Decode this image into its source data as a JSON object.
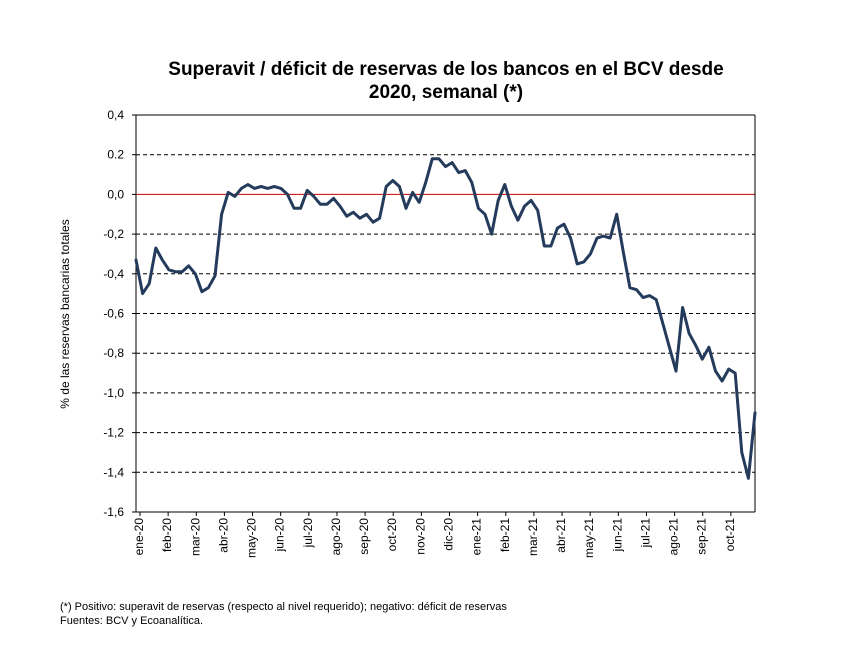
{
  "chart_data": {
    "type": "line",
    "title_lines": [
      "Superavit / déficit de reservas de los bancos en el BCV desde",
      "2020, semanal (*)"
    ],
    "ylabel": "% de las reservas bancarias totales",
    "ylim": [
      -1.6,
      0.4
    ],
    "yticks": [
      {
        "value": 0.4,
        "label": "0,4"
      },
      {
        "value": 0.2,
        "label": "0.2"
      },
      {
        "value": 0.0,
        "label": "0,0"
      },
      {
        "value": -0.2,
        "label": "-0,2"
      },
      {
        "value": -0.4,
        "label": "-0,4"
      },
      {
        "value": -0.6,
        "label": "-0,6"
      },
      {
        "value": -0.8,
        "label": "-0,8"
      },
      {
        "value": -1.0,
        "label": "-1,0"
      },
      {
        "value": -1.2,
        "label": "-1,2"
      },
      {
        "value": -1.4,
        "label": "-1,4"
      },
      {
        "value": -1.6,
        "label": "-1,6"
      }
    ],
    "xtick_labels": [
      "ene-20",
      "feb-20",
      "mar-20",
      "abr-20",
      "may-20",
      "jun-20",
      "jul-20",
      "ago-20",
      "sep-20",
      "oct-20",
      "nov-20",
      "dic-20",
      "ene-21",
      "feb-21",
      "mar-21",
      "abr-21",
      "may-21",
      "jun-21",
      "jul-21",
      "ago-21",
      "sep-21",
      "oct-21"
    ],
    "grid": "horizontal dashed",
    "zero_line_color": "#cc0000",
    "line_color": "#243b5c",
    "series": [
      {
        "values": [
          -0.33,
          -0.5,
          -0.45,
          -0.27,
          -0.33,
          -0.38,
          -0.39,
          -0.39,
          -0.36,
          -0.4,
          -0.49,
          -0.47,
          -0.41,
          -0.1,
          0.01,
          -0.01,
          0.03,
          0.05,
          0.03,
          0.04,
          0.03,
          0.04,
          0.03,
          0.0,
          -0.07,
          -0.07,
          0.02,
          -0.01,
          -0.05,
          -0.05,
          -0.02,
          -0.06,
          -0.11,
          -0.09,
          -0.12,
          -0.1,
          -0.14,
          -0.12,
          0.04,
          0.07,
          0.04,
          -0.07,
          0.01,
          -0.04,
          0.06,
          0.18,
          0.18,
          0.14,
          0.16,
          0.11,
          0.12,
          0.06,
          -0.07,
          -0.1,
          -0.2,
          -0.03,
          0.05,
          -0.06,
          -0.13,
          -0.06,
          -0.03,
          -0.08,
          -0.26,
          -0.26,
          -0.17,
          -0.15,
          -0.22,
          -0.35,
          -0.34,
          -0.3,
          -0.22,
          -0.21,
          -0.22,
          -0.1,
          -0.29,
          -0.47,
          -0.48,
          -0.52,
          -0.51,
          -0.53,
          -0.65,
          -0.77,
          -0.89,
          -0.57,
          -0.7,
          -0.76,
          -0.83,
          -0.77,
          -0.89,
          -0.94,
          -0.88,
          -0.9,
          -1.3,
          -1.43,
          -1.1
        ]
      }
    ]
  },
  "footnotes": {
    "note": "(*) Positivo: superavit de reservas (respecto al nivel requerido); negativo: déficit de reservas",
    "sources": "Fuentes: BCV y Ecoanalítica."
  }
}
